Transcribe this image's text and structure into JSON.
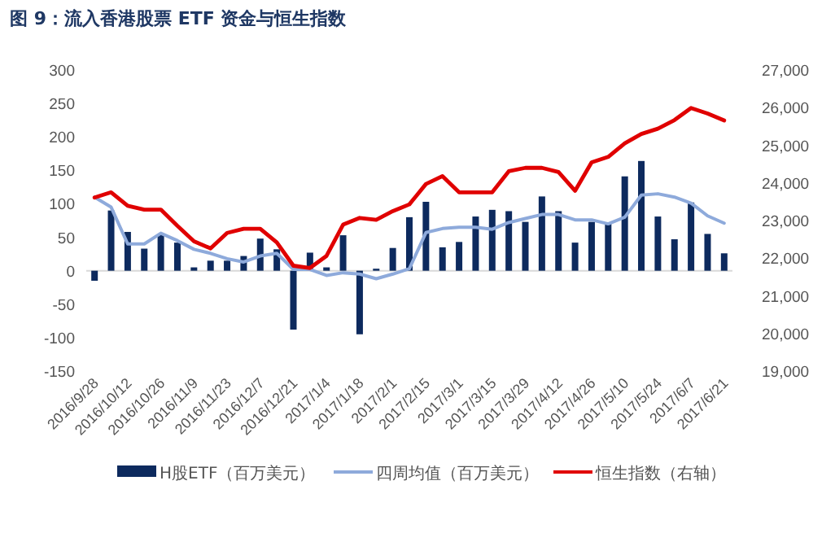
{
  "chart_data": {
    "type": "bar",
    "title": "图 9：流入香港股票 ETF 资金与恒生指数",
    "categories": [
      "2016/9/28",
      null,
      "2016/10/12",
      null,
      "2016/10/26",
      null,
      "2016/11/9",
      null,
      "2016/11/23",
      null,
      "2016/12/7",
      null,
      "2016/12/21",
      null,
      "2017/1/4",
      null,
      "2017/1/18",
      null,
      "2017/2/1",
      null,
      "2017/2/15",
      null,
      "2017/3/1",
      null,
      "2017/3/15",
      null,
      "2017/3/29",
      null,
      "2017/4/12",
      null,
      "2017/4/26",
      null,
      "2017/5/10",
      null,
      "2017/5/24",
      null,
      "2017/6/7",
      null,
      "2017/6/21"
    ],
    "series": [
      {
        "name": "H股ETF（百万美元）",
        "color": "#0d2a5e",
        "values": [
          -15,
          90,
          58,
          33,
          55,
          42,
          5,
          15,
          15,
          22,
          48,
          32,
          -88,
          27,
          5,
          53,
          -95,
          3,
          34,
          80,
          103,
          35,
          43,
          81,
          91,
          89,
          73,
          111,
          89,
          42,
          73,
          72,
          141,
          164,
          81,
          47,
          102,
          55,
          26
        ]
      },
      {
        "name": "四周均值（百万美元）",
        "type": "line",
        "color": "#8eaadb",
        "values": [
          110,
          95,
          40,
          40,
          56,
          45,
          32,
          26,
          18,
          13,
          22,
          26,
          2,
          2,
          -7,
          -3,
          -5,
          -12,
          -5,
          3,
          57,
          63,
          65,
          65,
          62,
          72,
          78,
          84,
          84,
          76,
          76,
          70,
          80,
          113,
          115,
          110,
          101,
          82,
          71
        ]
      },
      {
        "name": "恒生指数（右轴）",
        "type": "line",
        "axis": "y2",
        "color": "#e00000",
        "values": [
          23610,
          23750,
          23390,
          23290,
          23290,
          22860,
          22450,
          22260,
          22670,
          22780,
          22780,
          22420,
          21800,
          21740,
          22060,
          22890,
          23070,
          23020,
          23250,
          23430,
          23970,
          24180,
          23750,
          23750,
          23750,
          24310,
          24400,
          24400,
          24290,
          23790,
          24545,
          24690,
          25050,
          25300,
          25440,
          25670,
          25990,
          25845,
          25660
        ]
      }
    ],
    "ylim": [
      -150,
      300
    ],
    "yticks": [
      -150,
      -100,
      -50,
      0,
      50,
      100,
      150,
      200,
      250,
      300
    ],
    "y2lim": [
      19000,
      27000
    ],
    "y2ticks": [
      {
        "value": 19000,
        "label": "19,000"
      },
      {
        "value": 20000,
        "label": "20,000"
      },
      {
        "value": 21000,
        "label": "21,000"
      },
      {
        "value": 22000,
        "label": "22,000"
      },
      {
        "value": 23000,
        "label": "23,000"
      },
      {
        "value": 24000,
        "label": "24,000"
      },
      {
        "value": 25000,
        "label": "25,000"
      },
      {
        "value": 26000,
        "label": "26,000"
      },
      {
        "value": 27000,
        "label": "27,000"
      }
    ],
    "legend": "bottom"
  }
}
